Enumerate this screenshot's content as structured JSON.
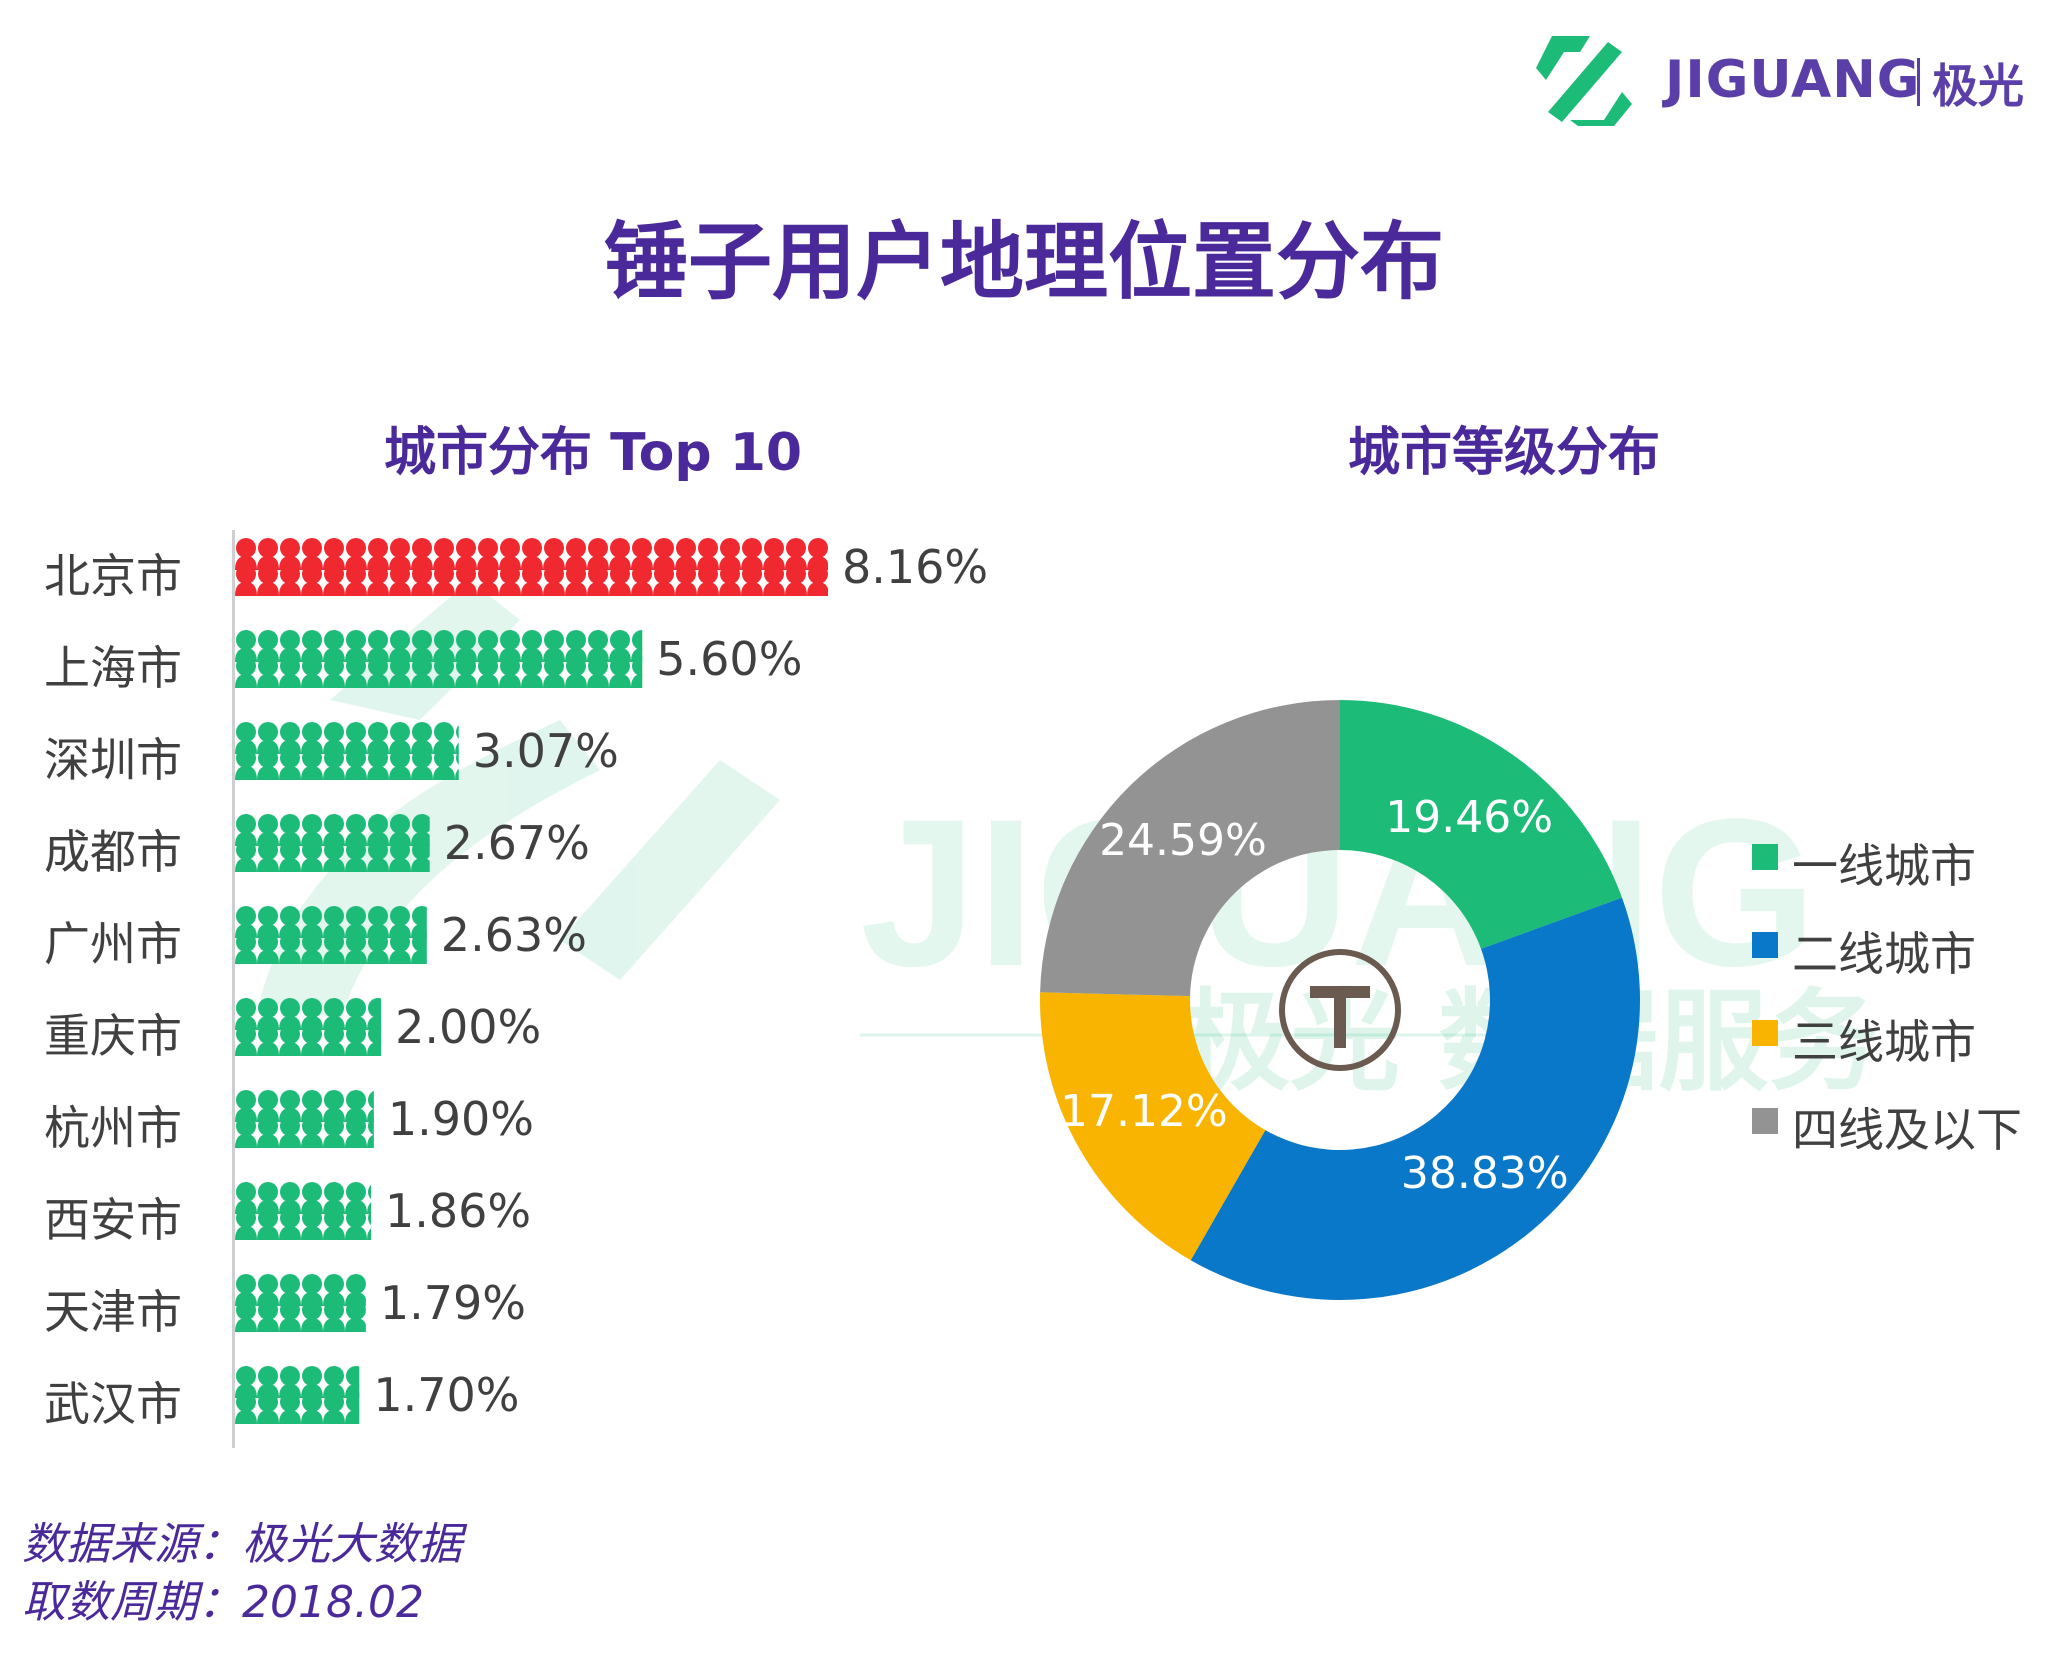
{
  "brand": {
    "name": "JIGUANG",
    "cn": "极光",
    "color": "#5b3fa8",
    "accent": "#1dbb78"
  },
  "watermark": {
    "en": "JIGUANG",
    "cn": "极光 数据服务"
  },
  "main_title": "锤子用户地理位置分布",
  "footer": {
    "source": "数据来源：极光大数据",
    "period": "取数周期：2018.02"
  },
  "chart_data": [
    {
      "type": "bar",
      "title": "城市分布 Top 10",
      "categories": [
        "北京市",
        "上海市",
        "深圳市",
        "成都市",
        "广州市",
        "重庆市",
        "杭州市",
        "西安市",
        "天津市",
        "武汉市"
      ],
      "values": [
        8.16,
        5.6,
        3.07,
        2.67,
        2.63,
        2.0,
        1.9,
        1.86,
        1.79,
        1.7
      ],
      "value_labels": [
        "8.16%",
        "5.60%",
        "3.07%",
        "2.67%",
        "2.63%",
        "2.00%",
        "1.90%",
        "1.86%",
        "1.79%",
        "1.70%"
      ],
      "unit": "%",
      "highlight_color": "#f0282f",
      "bar_color": "#1dbb78",
      "mark_style": "person-icons"
    },
    {
      "type": "pie",
      "variant": "donut",
      "title": "城市等级分布",
      "labels": [
        "一线城市",
        "二线城市",
        "三线城市",
        "四线及以下"
      ],
      "values": [
        19.46,
        38.83,
        17.12,
        24.59
      ],
      "value_labels": [
        "19.46%",
        "38.83%",
        "17.12%",
        "24.59%"
      ],
      "colors": [
        "#1dbb78",
        "#0a78c8",
        "#f8b400",
        "#939393"
      ],
      "center_icon": "hammer-logo-icon",
      "legend_position": "right"
    }
  ]
}
